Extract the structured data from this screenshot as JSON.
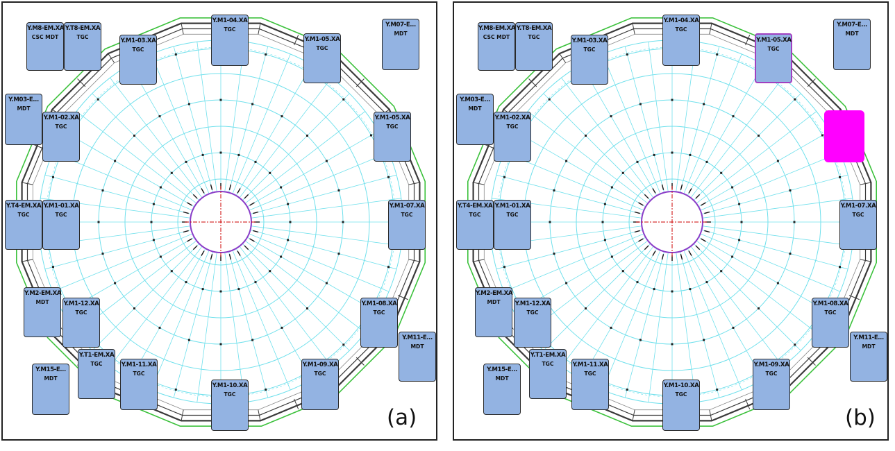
{
  "panels": [
    {
      "label": "(a)",
      "crates": [
        {
          "name": "Y.M8-EM.XA",
          "type": "CSC MDT"
        },
        {
          "name": "Y.T8-EM.XA",
          "type": "TGC"
        },
        {
          "name": "Y.M1-03.XA",
          "type": "TGC"
        },
        {
          "name": "Y.M1-04.XA",
          "type": "TGC"
        },
        {
          "name": "Y.M1-05.XA",
          "type": "TGC"
        },
        {
          "name": "Y.M07-E...",
          "type": "MDT"
        },
        {
          "name": "Y.M03-E...",
          "type": "MDT"
        },
        {
          "name": "Y.M1-02.XA",
          "type": "TGC"
        },
        {
          "name": "Y.M1-05.XA",
          "type": "TGC"
        },
        {
          "name": "Y.T4-EM.XA",
          "type": "TGC"
        },
        {
          "name": "Y.M1-01.XA",
          "type": "TGC"
        },
        {
          "name": "Y.M1-07.XA",
          "type": "TGC"
        },
        {
          "name": "Y.M2-EM.XA",
          "type": "MDT"
        },
        {
          "name": "Y.M1-12.XA",
          "type": "TGC"
        },
        {
          "name": "Y.M1-08.XA",
          "type": "TGC"
        },
        {
          "name": "Y.M11-E...",
          "type": "MDT"
        },
        {
          "name": "Y.T1-EM.XA",
          "type": "TGC"
        },
        {
          "name": "Y.M15-E...",
          "type": "MDT"
        },
        {
          "name": "Y.M1-11.XA",
          "type": "TGC"
        },
        {
          "name": "Y.M1-09.XA",
          "type": "TGC"
        },
        {
          "name": "Y.M1-10.XA",
          "type": "TGC"
        }
      ]
    },
    {
      "label": "(b)",
      "crates": [
        {
          "name": "Y.M8-EM.XA",
          "type": "CSC MDT"
        },
        {
          "name": "Y.T8-EM.XA",
          "type": "TGC"
        },
        {
          "name": "Y.M1-03.XA",
          "type": "TGC"
        },
        {
          "name": "Y.M1-04.XA",
          "type": "TGC"
        },
        {
          "name": "Y.M1-05.XA",
          "type": "TGC"
        },
        {
          "name": "Y.M07-E...",
          "type": "MDT"
        },
        {
          "name": "Y.M03-E...",
          "type": "MDT"
        },
        {
          "name": "Y.M1-02.XA",
          "type": "TGC"
        },
        {
          "name": "Y.T4-EM.XA",
          "type": "TGC"
        },
        {
          "name": "Y.M1-01.XA",
          "type": "TGC"
        },
        {
          "name": "Y.M1-07.XA",
          "type": "TGC"
        },
        {
          "name": "Y.M2-EM.XA",
          "type": "MDT"
        },
        {
          "name": "Y.M1-12.XA",
          "type": "TGC"
        },
        {
          "name": "Y.M1-08.XA",
          "type": "TGC"
        },
        {
          "name": "Y.M11-E...",
          "type": "MDT"
        },
        {
          "name": "Y.T1-EM.XA",
          "type": "TGC"
        },
        {
          "name": "Y.M15-E...",
          "type": "MDT"
        },
        {
          "name": "Y.M1-11.XA",
          "type": "TGC"
        },
        {
          "name": "Y.M1-09.XA",
          "type": "TGC"
        },
        {
          "name": "Y.M1-10.XA",
          "type": "TGC"
        }
      ]
    }
  ],
  "colors": {
    "crate_fill": "#93b3e2",
    "grid_line": "#6fe0ec",
    "structure": "#3a3a3a",
    "support": "#3cc13c",
    "beamline": "#cc0000",
    "highlight_block": "#ff00ff"
  }
}
